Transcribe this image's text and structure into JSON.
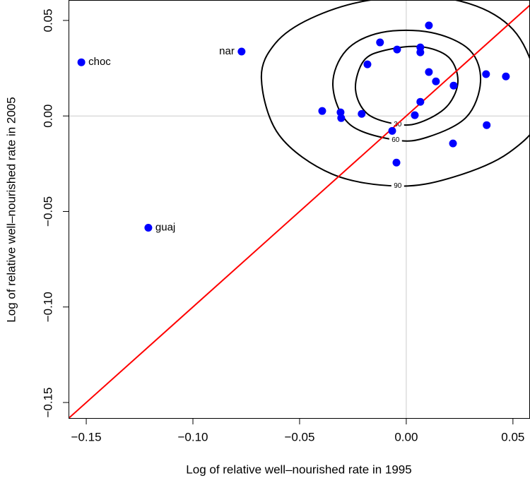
{
  "chart_data": {
    "type": "scatter",
    "xlabel": "Log of relative well–nourished rate in 1995",
    "ylabel": "Log of relative well–nourished rate in 2005",
    "xlim": [
      -0.1583,
      0.058
    ],
    "ylim": [
      -0.1585,
      0.0607
    ],
    "xticks": [
      {
        "value": -0.15,
        "label": "−0.15"
      },
      {
        "value": -0.1,
        "label": "−0.10"
      },
      {
        "value": -0.05,
        "label": "−0.05"
      },
      {
        "value": 0,
        "label": "0.00"
      },
      {
        "value": 0.05,
        "label": "0.05"
      }
    ],
    "yticks": [
      {
        "value": -0.15,
        "label": "−0.15"
      },
      {
        "value": -0.1,
        "label": "−0.10"
      },
      {
        "value": -0.05,
        "label": "−0.05"
      },
      {
        "value": 0,
        "label": "0.00"
      },
      {
        "value": 0.05,
        "label": "0.05"
      }
    ],
    "color": "#0000ff",
    "x": [
      -0.1523,
      -0.0772,
      -0.1209,
      -0.0394,
      -0.0308,
      -0.0305,
      -0.0209,
      -0.0182,
      -0.0123,
      -0.0043,
      0.0066,
      0.0066,
      0.0106,
      0.0106,
      0.0139,
      0.0066,
      0.004,
      -0.0066,
      -0.0046,
      0.0222,
      0.0374,
      0.0377,
      0.0219,
      0.0467
    ],
    "y": [
      0.0281,
      0.0337,
      -0.0585,
      0.0026,
      0.0019,
      -0.0011,
      0.0011,
      0.027,
      0.0385,
      0.0348,
      0.0359,
      0.0333,
      0.0474,
      0.023,
      0.0181,
      0.0074,
      0.0004,
      -0.0078,
      -0.0244,
      0.0159,
      0.0219,
      -0.0048,
      -0.0144,
      0.0207
    ],
    "point_labels": [
      "choc",
      "nar",
      "guaj",
      null,
      null,
      null,
      null,
      null,
      null,
      null,
      null,
      null,
      null,
      null,
      null,
      null,
      null,
      null,
      null,
      null,
      null,
      null,
      null,
      null
    ],
    "reference_lines": {
      "vertical": [
        0
      ],
      "horizontal": [
        0
      ],
      "color": "#cccccc"
    },
    "abline": {
      "intercept": 0,
      "slope": 1,
      "color": "#ff0000"
    },
    "contours": [
      {
        "level": 30,
        "x": [
          -0.0238,
          -0.0199,
          -0.0099,
          0.0066,
          0.0199,
          0.0242,
          0.0189,
          0.0066,
          -0.004,
          -0.0182
        ],
        "y": [
          0.0141,
          0.0289,
          0.0344,
          0.0363,
          0.0307,
          0.0178,
          0.0048,
          -0.0033,
          -0.0044,
          0.0011
        ]
      },
      {
        "level": 60,
        "x": [
          -0.0344,
          -0.0281,
          -0.0116,
          0.0116,
          0.0298,
          0.0348,
          0.0281,
          0.0099,
          -0.005,
          -0.0265
        ],
        "y": [
          0.0159,
          0.0344,
          0.0437,
          0.0437,
          0.0344,
          0.0178,
          -0.0007,
          -0.0111,
          -0.0126,
          -0.0044
        ]
      },
      {
        "level": 90,
        "x": [
          -0.0679,
          -0.0613,
          -0.0447,
          -0.0182,
          0.0149,
          0.0414,
          0.0563,
          0.0629,
          0.048,
          0.0215,
          -0.004,
          -0.0348,
          -0.0596
        ],
        "y": [
          0.0196,
          0.0381,
          0.0511,
          0.0604,
          0.0622,
          0.053,
          0.0344,
          0.0011,
          -0.0193,
          -0.0322,
          -0.0367,
          -0.0304,
          -0.01
        ]
      }
    ]
  }
}
